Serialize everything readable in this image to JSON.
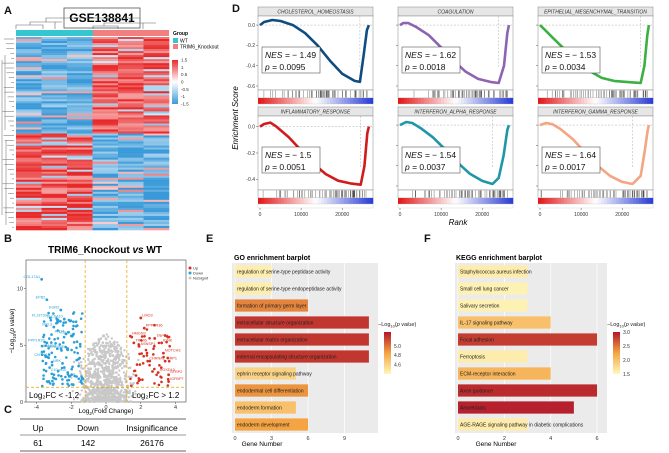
{
  "panel_letters": {
    "a": "A",
    "b": "B",
    "c": "C",
    "d": "D",
    "e": "E",
    "f": "F"
  },
  "chart_data": [
    {
      "panel": "A",
      "type": "heatmap",
      "title": "GSE138841",
      "legend_title": "Group",
      "groups": [
        {
          "name": "WT",
          "color": "#36c6d0"
        },
        {
          "name": "TRIM6_Knockout",
          "color": "#f08080"
        }
      ],
      "colorbar": {
        "ticks": [
          1.5,
          1,
          0.5,
          0,
          -0.5,
          -1,
          -1.5
        ],
        "high_color": "#e8292a",
        "low_color": "#3a9ad9"
      }
    },
    {
      "panel": "B",
      "type": "scatter",
      "title_left": "TRIM6_Knockout",
      "title_vs": "vs",
      "title_right": "WT",
      "xlabel_prefix": "Log",
      "xlabel_sub": "2",
      "xlabel_suffix": "(Fold Change)",
      "ylabel_prefix": "−Log",
      "ylabel_sub": "10",
      "ylabel_paren_open": "(",
      "ylabel_italic": "p value",
      "ylabel_paren_close": ")",
      "xlim": [
        -4.6,
        4.6
      ],
      "ylim": [
        0,
        12.5
      ],
      "xticks": [
        -4,
        -2,
        0,
        2,
        4
      ],
      "yticks": [
        0,
        5,
        10
      ],
      "thresholds": {
        "logfc_low": -1.2,
        "logfc_high": 1.2,
        "neg_log10_p": 1.3
      },
      "annotation_left": "Log₂FC < -1.2",
      "annotation_right": "Log₂FC > 1.2",
      "legend": [
        {
          "name": "Up",
          "color": "#d7301f"
        },
        {
          "name": "Down",
          "color": "#2b9fd8"
        },
        {
          "name": "NoSignif",
          "color": "#c8c8c8"
        }
      ],
      "labeled_down": [
        {
          "label": "COL17A1",
          "x": -3.7,
          "y": 10.8
        },
        {
          "label": "EPB2",
          "x": -3.4,
          "y": 9.0
        },
        {
          "label": "EGR2",
          "x": -2.6,
          "y": 8.1
        },
        {
          "label": "SLC6A10",
          "x": -2.4,
          "y": 7.3
        },
        {
          "label": "FLJ37307",
          "x": -3.2,
          "y": 7.4
        },
        {
          "label": "MYL9",
          "x": -3.0,
          "y": 6.6
        },
        {
          "label": "KRT4",
          "x": -2.3,
          "y": 6.0
        },
        {
          "label": "MSLNL",
          "x": -1.9,
          "y": 5.9
        },
        {
          "label": "PPP1R3C",
          "x": -3.4,
          "y": 5.2
        },
        {
          "label": "LAMB3",
          "x": -2.8,
          "y": 4.7
        },
        {
          "label": "SERPINE1",
          "x": -2.2,
          "y": 4.6
        },
        {
          "label": "CNTN4",
          "x": -3.3,
          "y": 3.9
        },
        {
          "label": "NRK",
          "x": -2.5,
          "y": 3.4
        },
        {
          "label": "C10orf10",
          "x": -2.2,
          "y": 2.6
        }
      ],
      "labeled_up": [
        {
          "label": "LMO3",
          "x": 2.0,
          "y": 7.4
        },
        {
          "label": "PPP1R36",
          "x": 2.2,
          "y": 6.5
        },
        {
          "label": "HMGN3",
          "x": 1.4,
          "y": 5.8
        },
        {
          "label": "TRIM6",
          "x": 1.6,
          "y": 5.2
        },
        {
          "label": "ASNSP1",
          "x": 1.9,
          "y": 4.9
        },
        {
          "label": "TRPC1",
          "x": 2.8,
          "y": 5.6
        },
        {
          "label": "NOTCH3",
          "x": 3.3,
          "y": 4.3
        },
        {
          "label": "IDNK",
          "x": 3.2,
          "y": 5.2
        },
        {
          "label": "CHRNA1",
          "x": 2.4,
          "y": 3.6
        },
        {
          "label": "GRP1",
          "x": 3.4,
          "y": 3.6
        },
        {
          "label": "HOXD10",
          "x": 3.0,
          "y": 2.6
        },
        {
          "label": "SFRP2",
          "x": 3.6,
          "y": 2.4
        },
        {
          "label": "IGFBP7",
          "x": 3.6,
          "y": 1.8
        }
      ]
    },
    {
      "panel": "C",
      "type": "table",
      "headers": [
        "Up",
        "Down",
        "Insignificance"
      ],
      "values": [
        "61",
        "142",
        "26176"
      ]
    },
    {
      "panel": "D",
      "type": "line",
      "ylabel": "Enrichment Score",
      "xlabel": "Rank",
      "xticks": [
        0,
        10000,
        20000
      ],
      "xlim": [
        0,
        27000
      ],
      "nes_label": "NES = ",
      "p_label_italic": "p",
      "p_label_eq": " = ",
      "gene_sets": [
        {
          "name": "CHOLESTEROL_HOMEOSTASIS",
          "nes": "− 1.49",
          "p": "0.0095",
          "color": "#0f4c81",
          "ylim": [
            -0.6,
            0.05
          ],
          "yticks": [
            0.0,
            -0.2,
            -0.4,
            -0.6
          ],
          "yticklabels": [
            "0.0",
            "-0.2",
            "-0.4",
            "-0.6"
          ],
          "curve": [
            [
              0,
              0
            ],
            [
              1000,
              0.03
            ],
            [
              3000,
              0.05
            ],
            [
              5000,
              0.04
            ],
            [
              8000,
              0.0
            ],
            [
              11000,
              -0.08
            ],
            [
              14000,
              -0.2
            ],
            [
              17000,
              -0.35
            ],
            [
              20000,
              -0.48
            ],
            [
              23000,
              -0.55
            ],
            [
              24300,
              -0.56
            ],
            [
              25200,
              -0.3
            ],
            [
              26000,
              -0.05
            ],
            [
              26500,
              0
            ]
          ],
          "min_rank": 24300,
          "min_es": -0.56
        },
        {
          "name": "COAGULATION",
          "nes": "− 1.62",
          "p": "0.0018",
          "color": "#8e63b0",
          "ylim": [
            -0.6,
            0.05
          ],
          "yticks": [
            0.0,
            -0.2,
            -0.4,
            -0.6
          ],
          "yticklabels": [
            "0.0",
            "-0.2",
            "-0.4",
            "-0.6"
          ],
          "curve": [
            [
              0,
              0
            ],
            [
              800,
              0.02
            ],
            [
              2000,
              0.02
            ],
            [
              4000,
              -0.02
            ],
            [
              7000,
              -0.1
            ],
            [
              10000,
              -0.22
            ],
            [
              13000,
              -0.35
            ],
            [
              16000,
              -0.46
            ],
            [
              19000,
              -0.53
            ],
            [
              22000,
              -0.56
            ],
            [
              24000,
              -0.57
            ],
            [
              25300,
              -0.4
            ],
            [
              26100,
              -0.08
            ],
            [
              26500,
              0
            ]
          ],
          "min_rank": 24000,
          "min_es": -0.57
        },
        {
          "name": "EPITHELIAL_MESENCHYMAL_TRANSITION",
          "nes": "− 1.53",
          "p": "0.0034",
          "color": "#3cb043",
          "ylim": [
            -0.6,
            0.05
          ],
          "yticks": [
            0.0,
            -0.2,
            -0.4,
            -0.6
          ],
          "yticklabels": [
            "0.0",
            "-0.2",
            "-0.4",
            "-0.6"
          ],
          "curve": [
            [
              0,
              0
            ],
            [
              1000,
              -0.04
            ],
            [
              3000,
              -0.12
            ],
            [
              6000,
              -0.24
            ],
            [
              9000,
              -0.35
            ],
            [
              12000,
              -0.45
            ],
            [
              15000,
              -0.52
            ],
            [
              18000,
              -0.55
            ],
            [
              21000,
              -0.56
            ],
            [
              24500,
              -0.57
            ],
            [
              25400,
              -0.4
            ],
            [
              26100,
              -0.1
            ],
            [
              26500,
              0
            ]
          ],
          "min_rank": 24500,
          "min_es": -0.57
        },
        {
          "name": "INFLAMMATORY_RESPONSE",
          "nes": "− 1.5",
          "p": "0.0051",
          "color": "#d01c1c",
          "ylim": [
            -0.45,
            0.05
          ],
          "yticks": [
            0.0,
            -0.2,
            -0.4
          ],
          "yticklabels": [
            "0.0",
            "-0.2",
            "-0.4"
          ],
          "curve": [
            [
              0,
              0
            ],
            [
              1000,
              0.02
            ],
            [
              2500,
              0.03
            ],
            [
              4000,
              0.0
            ],
            [
              7000,
              -0.08
            ],
            [
              10000,
              -0.18
            ],
            [
              13000,
              -0.28
            ],
            [
              16000,
              -0.36
            ],
            [
              19000,
              -0.41
            ],
            [
              22000,
              -0.43
            ],
            [
              24500,
              -0.44
            ],
            [
              25400,
              -0.3
            ],
            [
              26100,
              -0.05
            ],
            [
              26500,
              0
            ]
          ],
          "min_rank": 24500,
          "min_es": -0.44
        },
        {
          "name": "INTERFERON_ALPHA_RESPONSE",
          "nes": "− 1.54",
          "p": "0.0037",
          "color": "#1f97a6",
          "ylim": [
            -0.6,
            0.05
          ],
          "yticks": [
            0.0,
            -0.2,
            -0.4,
            -0.6
          ],
          "yticklabels": [
            "0.0",
            "-0.2",
            "-0.4",
            "-0.6"
          ],
          "curve": [
            [
              0,
              0
            ],
            [
              1500,
              0.03
            ],
            [
              3000,
              0.02
            ],
            [
              5000,
              -0.03
            ],
            [
              8000,
              -0.12
            ],
            [
              11000,
              -0.24
            ],
            [
              14000,
              -0.37
            ],
            [
              17000,
              -0.48
            ],
            [
              20000,
              -0.55
            ],
            [
              22500,
              -0.58
            ],
            [
              24000,
              -0.52
            ],
            [
              25200,
              -0.3
            ],
            [
              26100,
              -0.05
            ],
            [
              26500,
              0
            ]
          ],
          "min_rank": 22500,
          "min_es": -0.58
        },
        {
          "name": "INTERFERON_GAMMA_RESPONSE",
          "nes": "− 1.64",
          "p": "0.0017",
          "color": "#f4a582",
          "ylim": [
            -0.6,
            0.05
          ],
          "yticks": [
            0.0,
            -0.2,
            -0.4,
            -0.6
          ],
          "yticklabels": [
            "0.0",
            "-0.2",
            "-0.4",
            "-0.6"
          ],
          "curve": [
            [
              0,
              0
            ],
            [
              1500,
              0.02
            ],
            [
              3000,
              0.01
            ],
            [
              5000,
              -0.04
            ],
            [
              8000,
              -0.14
            ],
            [
              11000,
              -0.27
            ],
            [
              14000,
              -0.4
            ],
            [
              17000,
              -0.5
            ],
            [
              20000,
              -0.56
            ],
            [
              22500,
              -0.58
            ],
            [
              24500,
              -0.5
            ],
            [
              25500,
              -0.25
            ],
            [
              26200,
              -0.05
            ],
            [
              26500,
              0
            ]
          ],
          "min_rank": 22500,
          "min_es": -0.58
        }
      ]
    },
    {
      "panel": "E",
      "type": "bar",
      "title": "GO enrichment barplot",
      "xlabel": "Gene Number",
      "xlim": [
        0,
        11.5
      ],
      "xticks": [
        0,
        3,
        6,
        9
      ],
      "legend_title_prefix": "−Log",
      "legend_title_sub": "10",
      "legend_title_paren_open": "(",
      "legend_title_italic": "p value",
      "legend_title_paren_close": ")",
      "colorbar": {
        "min": 4.4,
        "max": 5.3,
        "ticks": [
          5.0,
          4.8,
          4.6
        ],
        "ticklabels": [
          "5.0",
          "4.8",
          "4.6"
        ],
        "low_color": "#fff7bc",
        "mid_color": "#f4a442",
        "high_color": "#b2182b"
      },
      "categories": [
        "regulation of serine-type peptidase activity",
        "regulation of serine-type endopeptidase activity",
        "formation of primary germ layer",
        "extracellular structure organization",
        "extracellular matrix organization",
        "external encapsulating structure organization",
        "ephrin receptor signaling pathway",
        "endodermal cell differentiation",
        "endoderm formation",
        "endoderm development"
      ],
      "values": [
        3,
        3,
        6,
        11,
        11,
        11,
        5,
        6,
        5,
        6
      ],
      "neg_log10_p": [
        4.45,
        4.45,
        4.95,
        5.2,
        5.2,
        5.2,
        4.6,
        4.9,
        4.7,
        4.85
      ]
    },
    {
      "panel": "F",
      "type": "bar",
      "title": "KEGG enrichment barplot",
      "xlabel": "Gene Number",
      "xlim": [
        0,
        6.3
      ],
      "xticks": [
        0,
        2,
        4,
        6
      ],
      "legend_title_prefix": "−Log",
      "legend_title_sub": "10",
      "legend_title_paren_open": "(",
      "legend_title_italic": "p value",
      "legend_title_paren_close": ")",
      "colorbar": {
        "min": 1.5,
        "max": 3.0,
        "ticks": [
          3.0,
          2.5,
          2.0,
          1.5
        ],
        "ticklabels": [
          "3.0",
          "2.5",
          "2.0",
          "1.5"
        ],
        "low_color": "#fff7bc",
        "mid_color": "#f4a442",
        "high_color": "#b2182b"
      },
      "categories": [
        "Staphylococcus aureus infection",
        "Small cell lung cancer",
        "Salivary secretion",
        "IL-17 signaling pathway",
        "Focal adhesion",
        "Ferroptosis",
        "ECM-receptor interaction",
        "Axon guidance",
        "Amoebiasis",
        "AGE-RAGE signaling pathway in diabetic complications"
      ],
      "values": [
        3,
        3,
        3,
        4,
        6,
        3,
        4,
        6,
        5,
        3
      ],
      "neg_log10_p": [
        1.6,
        1.55,
        1.55,
        2.0,
        2.8,
        1.6,
        2.1,
        2.9,
        2.95,
        1.6
      ]
    }
  ]
}
